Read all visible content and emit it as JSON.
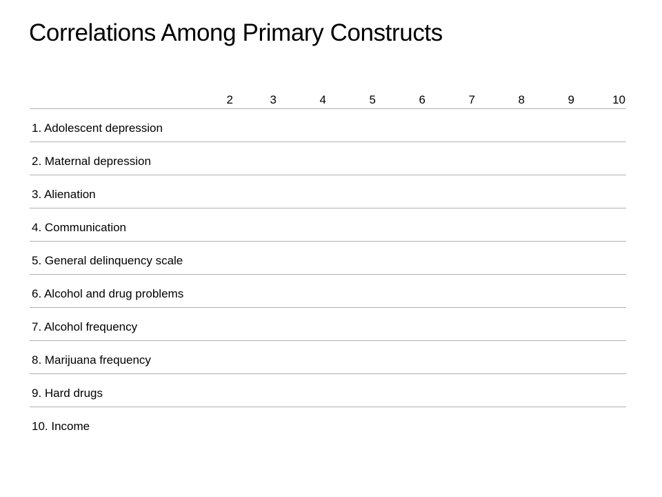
{
  "slide": {
    "title": "Correlations Among Primary Constructs"
  },
  "table": {
    "columns": [
      "2",
      "3",
      "4",
      "5",
      "6",
      "7",
      "8",
      "9",
      "10"
    ],
    "rows": [
      "1. Adolescent depression",
      "2. Maternal depression",
      "3. Alienation",
      "4. Communication",
      "5. General delinquency scale",
      "6. Alcohol and drug problems",
      "7. Alcohol frequency",
      "8. Marijuana frequency",
      "9. Hard drugs",
      "10. Income"
    ]
  }
}
